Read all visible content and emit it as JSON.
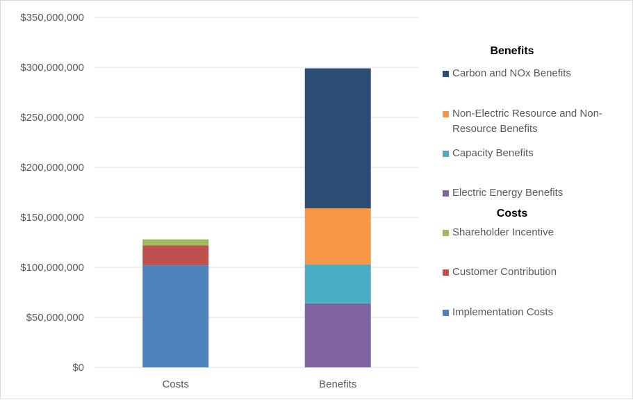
{
  "chart_data": {
    "type": "bar",
    "stacked": true,
    "categories": [
      "Costs",
      "Benefits"
    ],
    "y_ticks": [
      "$0",
      "$50,000,000",
      "$100,000,000",
      "$150,000,000",
      "$200,000,000",
      "$250,000,000",
      "$300,000,000",
      "$350,000,000"
    ],
    "ylim": [
      0,
      350000000
    ],
    "grid": true,
    "legend_position": "right",
    "series": [
      {
        "name": "Implementation Costs",
        "group": "Costs",
        "color": "#4f81bd",
        "values": [
          102000000,
          0
        ]
      },
      {
        "name": "Customer Contribution",
        "group": "Costs",
        "color": "#c0504d",
        "values": [
          20000000,
          0
        ]
      },
      {
        "name": "Shareholder Incentive",
        "group": "Costs",
        "color": "#9bbb59",
        "values": [
          6000000,
          0
        ]
      },
      {
        "name": "Electric Energy Benefits",
        "group": "Benefits",
        "color": "#8064a2",
        "values": [
          0,
          64000000
        ]
      },
      {
        "name": "Capacity Benefits",
        "group": "Benefits",
        "color": "#4bacc6",
        "values": [
          0,
          39000000
        ]
      },
      {
        "name": "Non-Electric Resource and Non-Resource Benefits",
        "group": "Benefits",
        "color": "#f79646",
        "values": [
          0,
          56000000
        ]
      },
      {
        "name": "Carbon and NOx Benefits",
        "group": "Benefits",
        "color": "#2c4d75",
        "values": [
          0,
          140000000
        ]
      }
    ]
  },
  "legend": {
    "benefits_heading": "Benefits",
    "costs_heading": "Costs",
    "items": [
      {
        "label": "Carbon and NOx Benefits",
        "color": "#2c4d75"
      },
      {
        "label": "Non-Electric Resource and Non-Resource Benefits",
        "color": "#f79646"
      },
      {
        "label": "Capacity Benefits",
        "color": "#4bacc6"
      },
      {
        "label": "Electric Energy Benefits",
        "color": "#8064a2"
      },
      {
        "label": "Shareholder Incentive",
        "color": "#9bbb59"
      },
      {
        "label": "Customer Contribution",
        "color": "#c0504d"
      },
      {
        "label": "Implementation Costs",
        "color": "#4f81bd"
      }
    ]
  }
}
